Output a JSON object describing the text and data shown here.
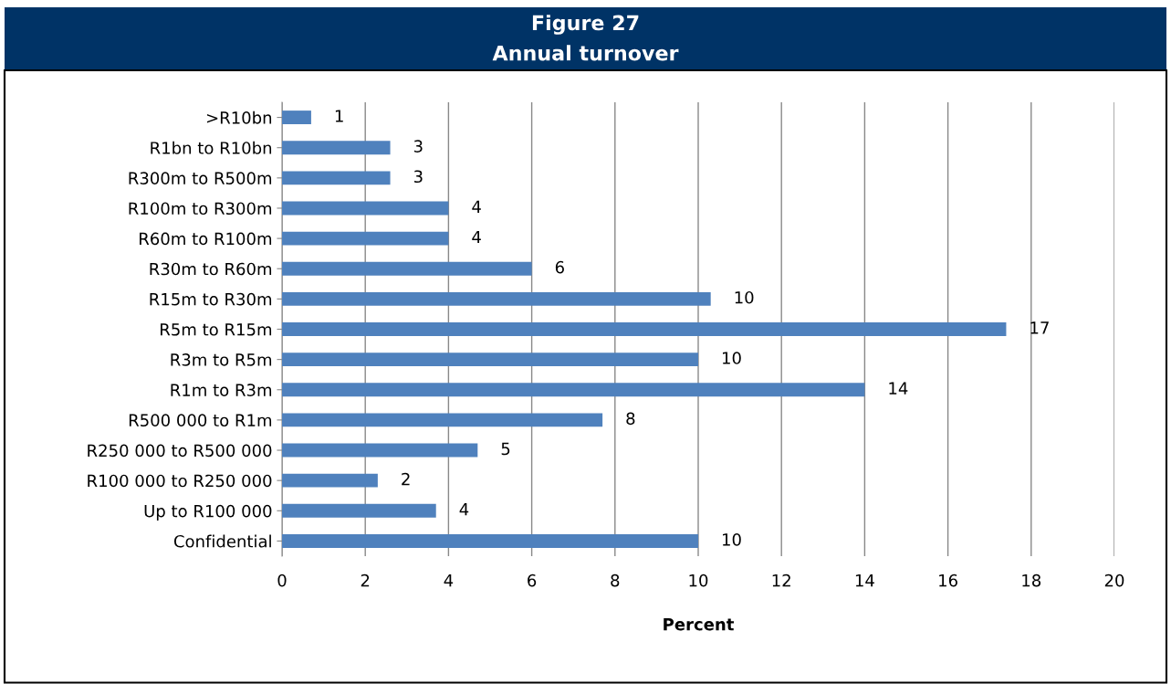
{
  "chart_data": {
    "type": "bar",
    "orientation": "horizontal",
    "title": "Figure 27",
    "subtitle": "Annual turnover",
    "xlabel": "Percent",
    "categories": [
      ">R10bn",
      "R1bn to R10bn",
      "R300m to R500m",
      "R100m to R300m",
      "R60m to R100m",
      "R30m to R60m",
      "R15m to R30m",
      "R5m to R15m",
      "R3m to R5m",
      "R1m to R3m",
      "R500 000 to R1m",
      "R250 000 to R500 000",
      "R100 000 to R250 000",
      "Up to R100 000",
      "Confidential"
    ],
    "values": [
      0.7,
      2.6,
      2.6,
      4.0,
      4.0,
      6.0,
      10.3,
      17.4,
      10.0,
      14.0,
      7.7,
      4.7,
      2.3,
      3.7,
      10.0
    ],
    "value_labels": [
      "1",
      "3",
      "3",
      "4",
      "4",
      "6",
      "10",
      "17",
      "10",
      "14",
      "8",
      "5",
      "2",
      "4",
      "10"
    ],
    "color": "#4f81bd",
    "xlim": [
      0,
      20
    ],
    "xticks": [
      0,
      2,
      4,
      6,
      8,
      10,
      12,
      14,
      16,
      18,
      20
    ],
    "grid": "x",
    "legend": false
  }
}
